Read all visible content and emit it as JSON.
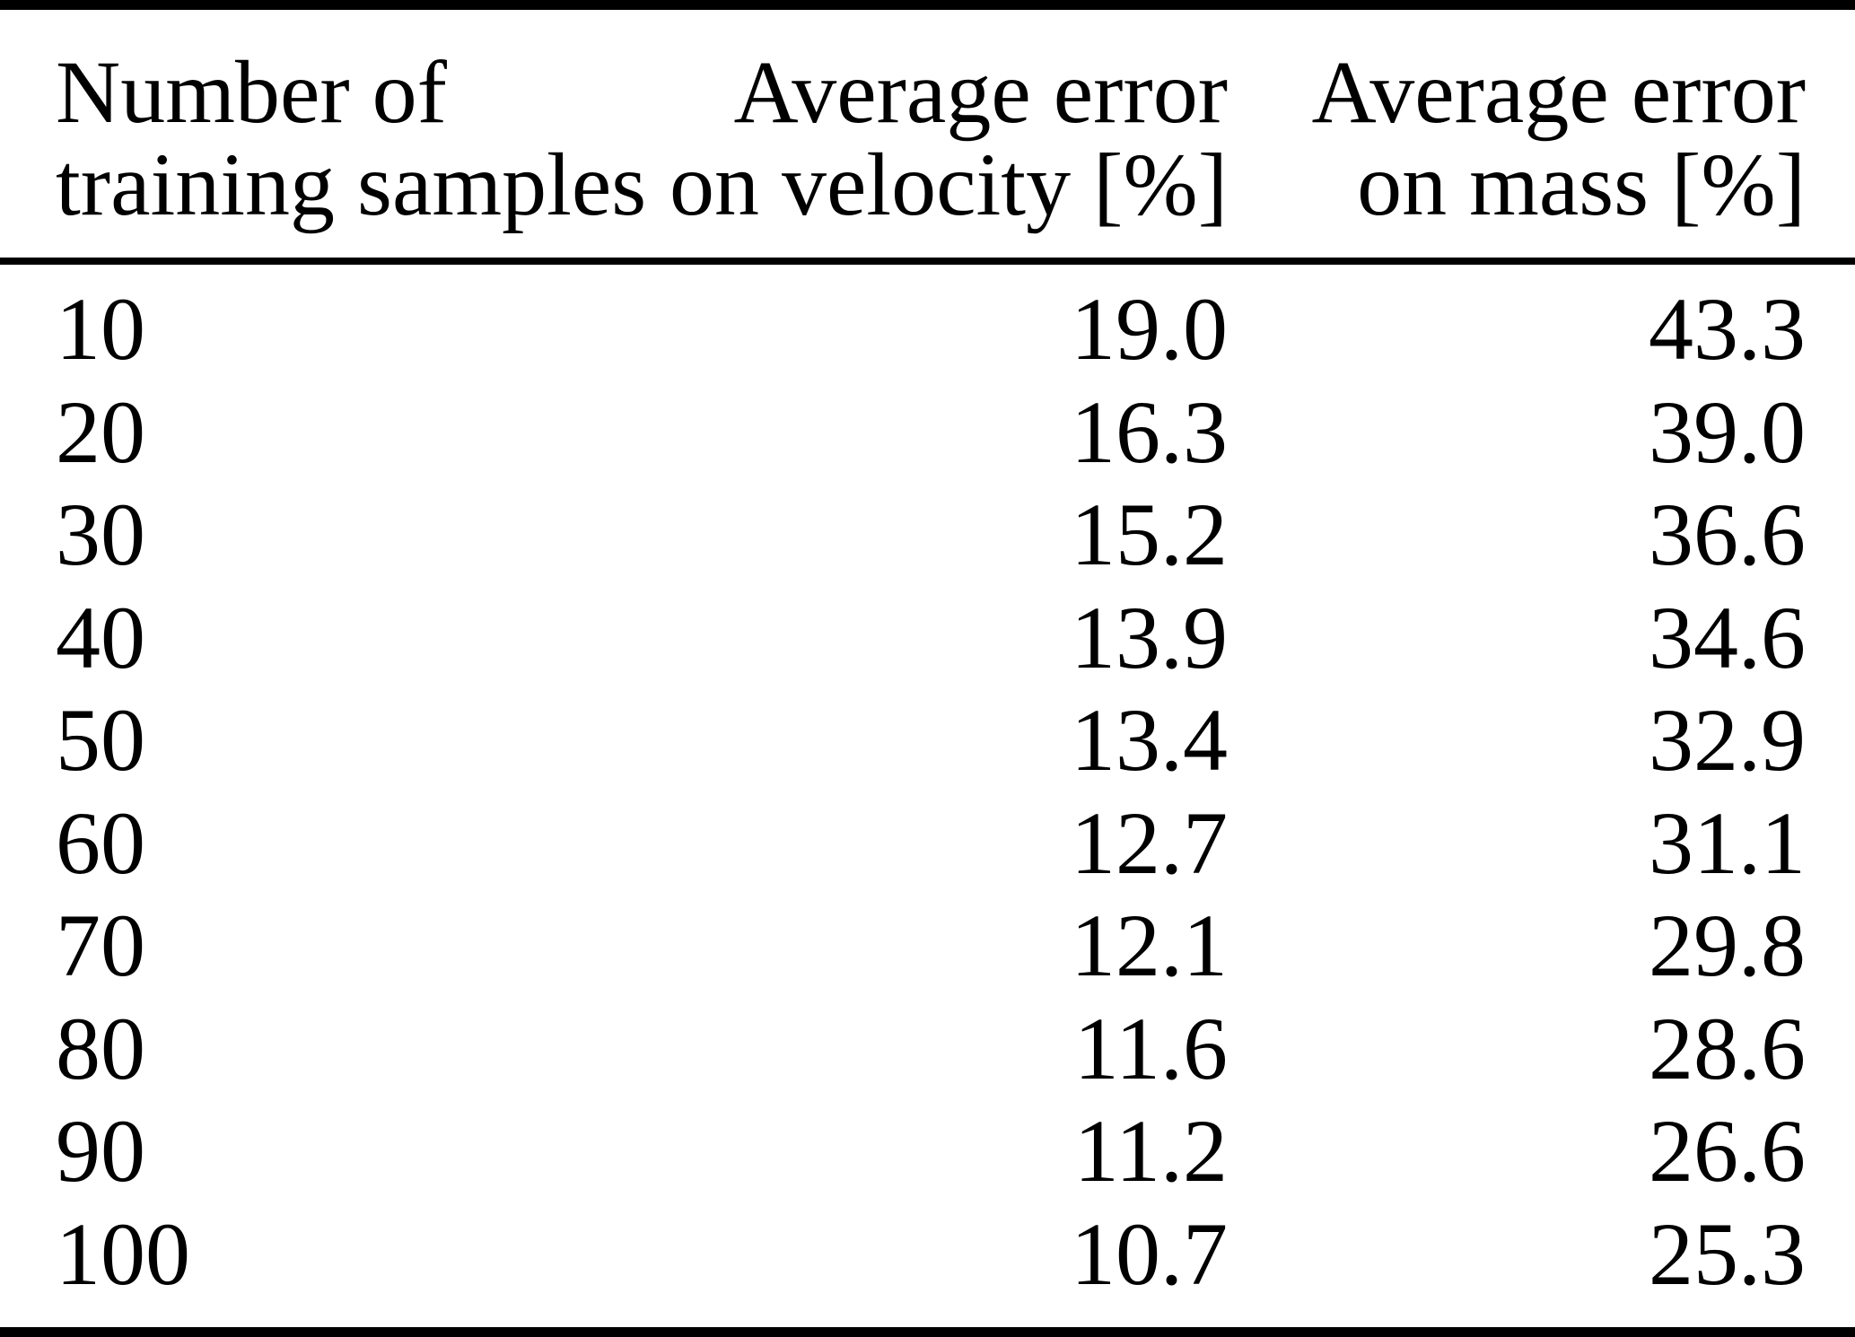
{
  "colors": {
    "background": "#ffffff",
    "text": "#000000",
    "rule": "#000000"
  },
  "table": {
    "headers": {
      "col1": {
        "line1": "Number of",
        "line2": "training samples"
      },
      "col2": {
        "line1": "Average error",
        "line2": "on velocity [%]"
      },
      "col3": {
        "line1": "Average error",
        "line2": "on mass [%]"
      }
    },
    "rows": [
      {
        "samples": "10",
        "velocity": "19.0",
        "mass": "43.3"
      },
      {
        "samples": "20",
        "velocity": "16.3",
        "mass": "39.0"
      },
      {
        "samples": "30",
        "velocity": "15.2",
        "mass": "36.6"
      },
      {
        "samples": "40",
        "velocity": "13.9",
        "mass": "34.6"
      },
      {
        "samples": "50",
        "velocity": "13.4",
        "mass": "32.9"
      },
      {
        "samples": "60",
        "velocity": "12.7",
        "mass": "31.1"
      },
      {
        "samples": "70",
        "velocity": "12.1",
        "mass": "29.8"
      },
      {
        "samples": "80",
        "velocity": "11.6",
        "mass": "28.6"
      },
      {
        "samples": "90",
        "velocity": "11.2",
        "mass": "26.6"
      },
      {
        "samples": "100",
        "velocity": "10.7",
        "mass": "25.3"
      }
    ]
  }
}
